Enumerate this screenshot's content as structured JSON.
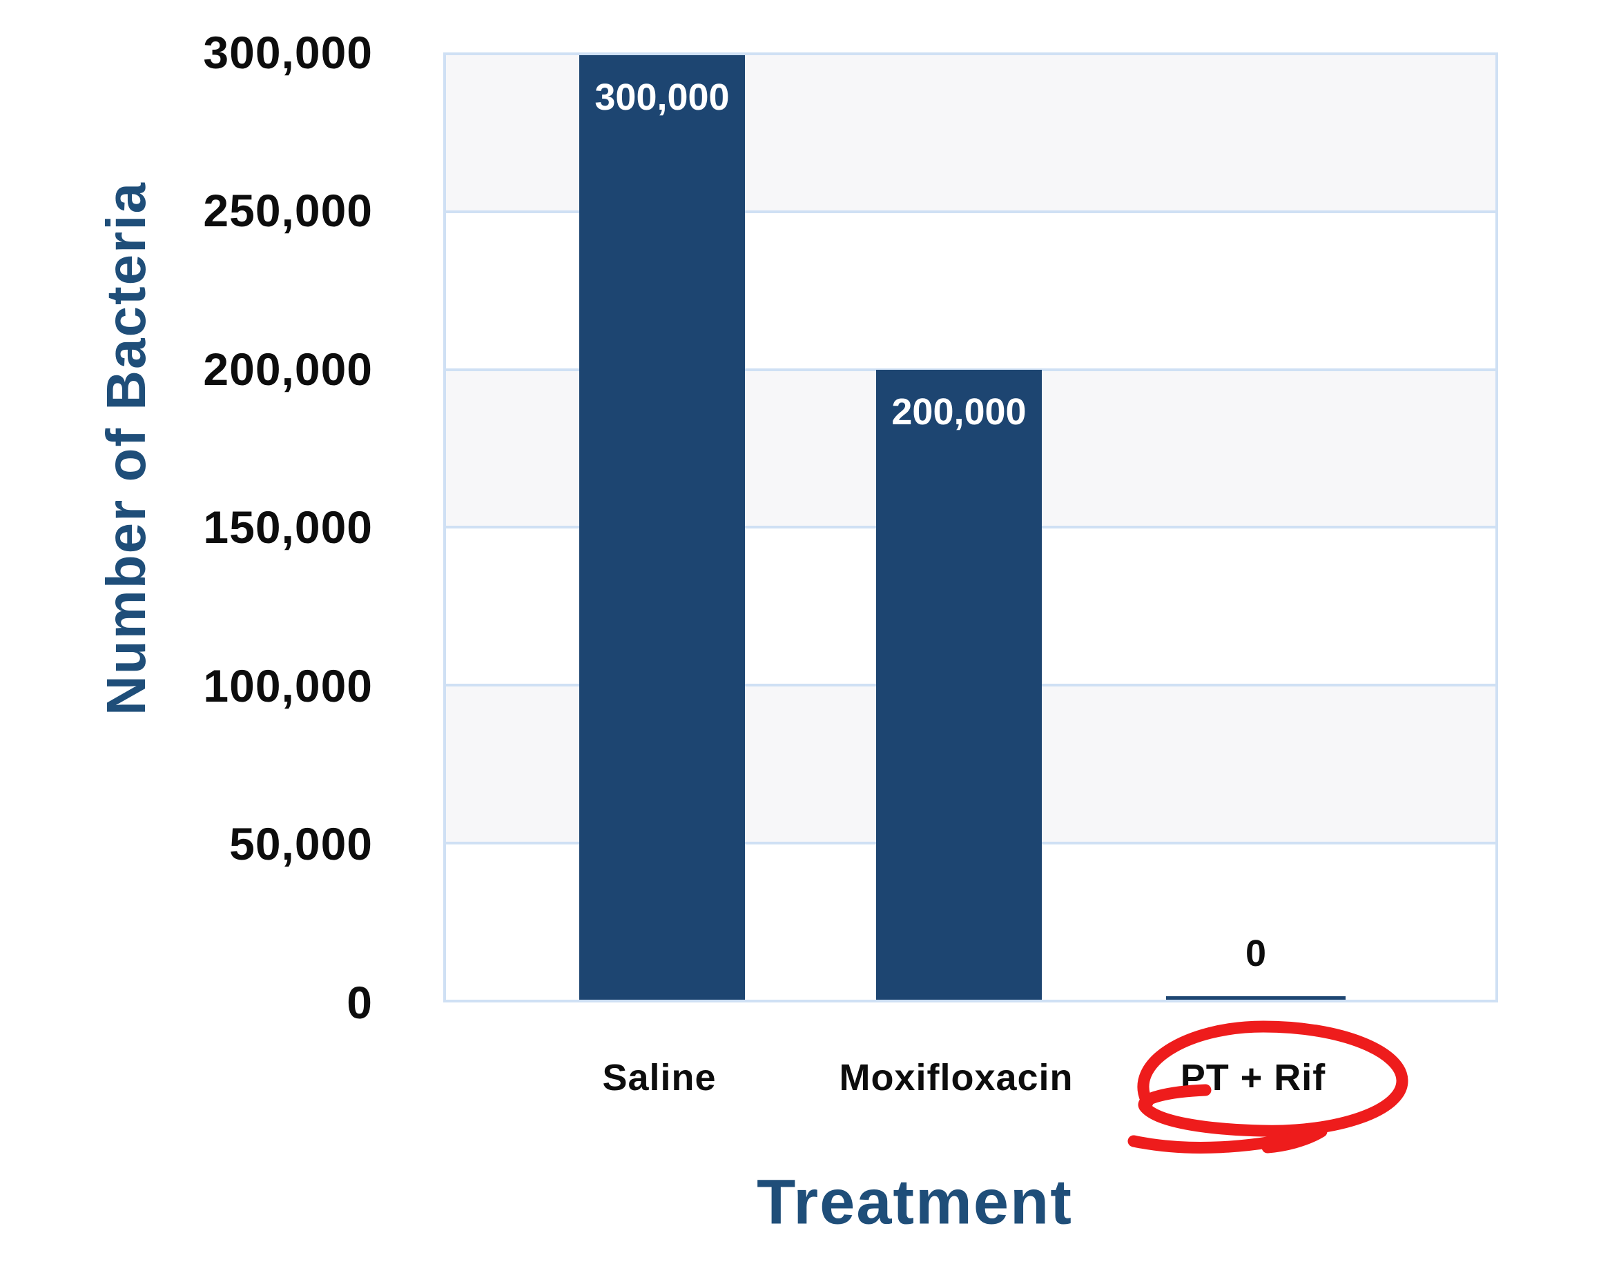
{
  "chart_data": {
    "type": "bar",
    "categories": [
      "Saline",
      "Moxifloxacin",
      "PT + Rif"
    ],
    "values": [
      300000,
      200000,
      0
    ],
    "bar_labels": [
      "300,000",
      "200,000",
      "0"
    ],
    "title": "",
    "xlabel": "Treatment",
    "ylabel": "Number of Bacteria",
    "ylim": [
      0,
      300000
    ],
    "ytick_interval": 50000,
    "yticks": [
      "300,000",
      "250,000",
      "200,000",
      "150,000",
      "100,000",
      "50,000",
      "0"
    ],
    "grid": "horizontal gridlines with alternating band fill",
    "legend": "none",
    "annotations": [
      {
        "type": "hand-drawn-circle",
        "target_category": "PT + Rif",
        "color": "#ee1c1c"
      }
    ]
  },
  "colors": {
    "bar": "#1d4571",
    "axis-title": "#1f4e79",
    "grid": "#cfe0f4",
    "band": "#f7f7f9",
    "annotation-red": "#ee1c1c",
    "tick-text": "#0d0d0d",
    "bar-label-text": "#ffffff",
    "background": "#ffffff"
  }
}
